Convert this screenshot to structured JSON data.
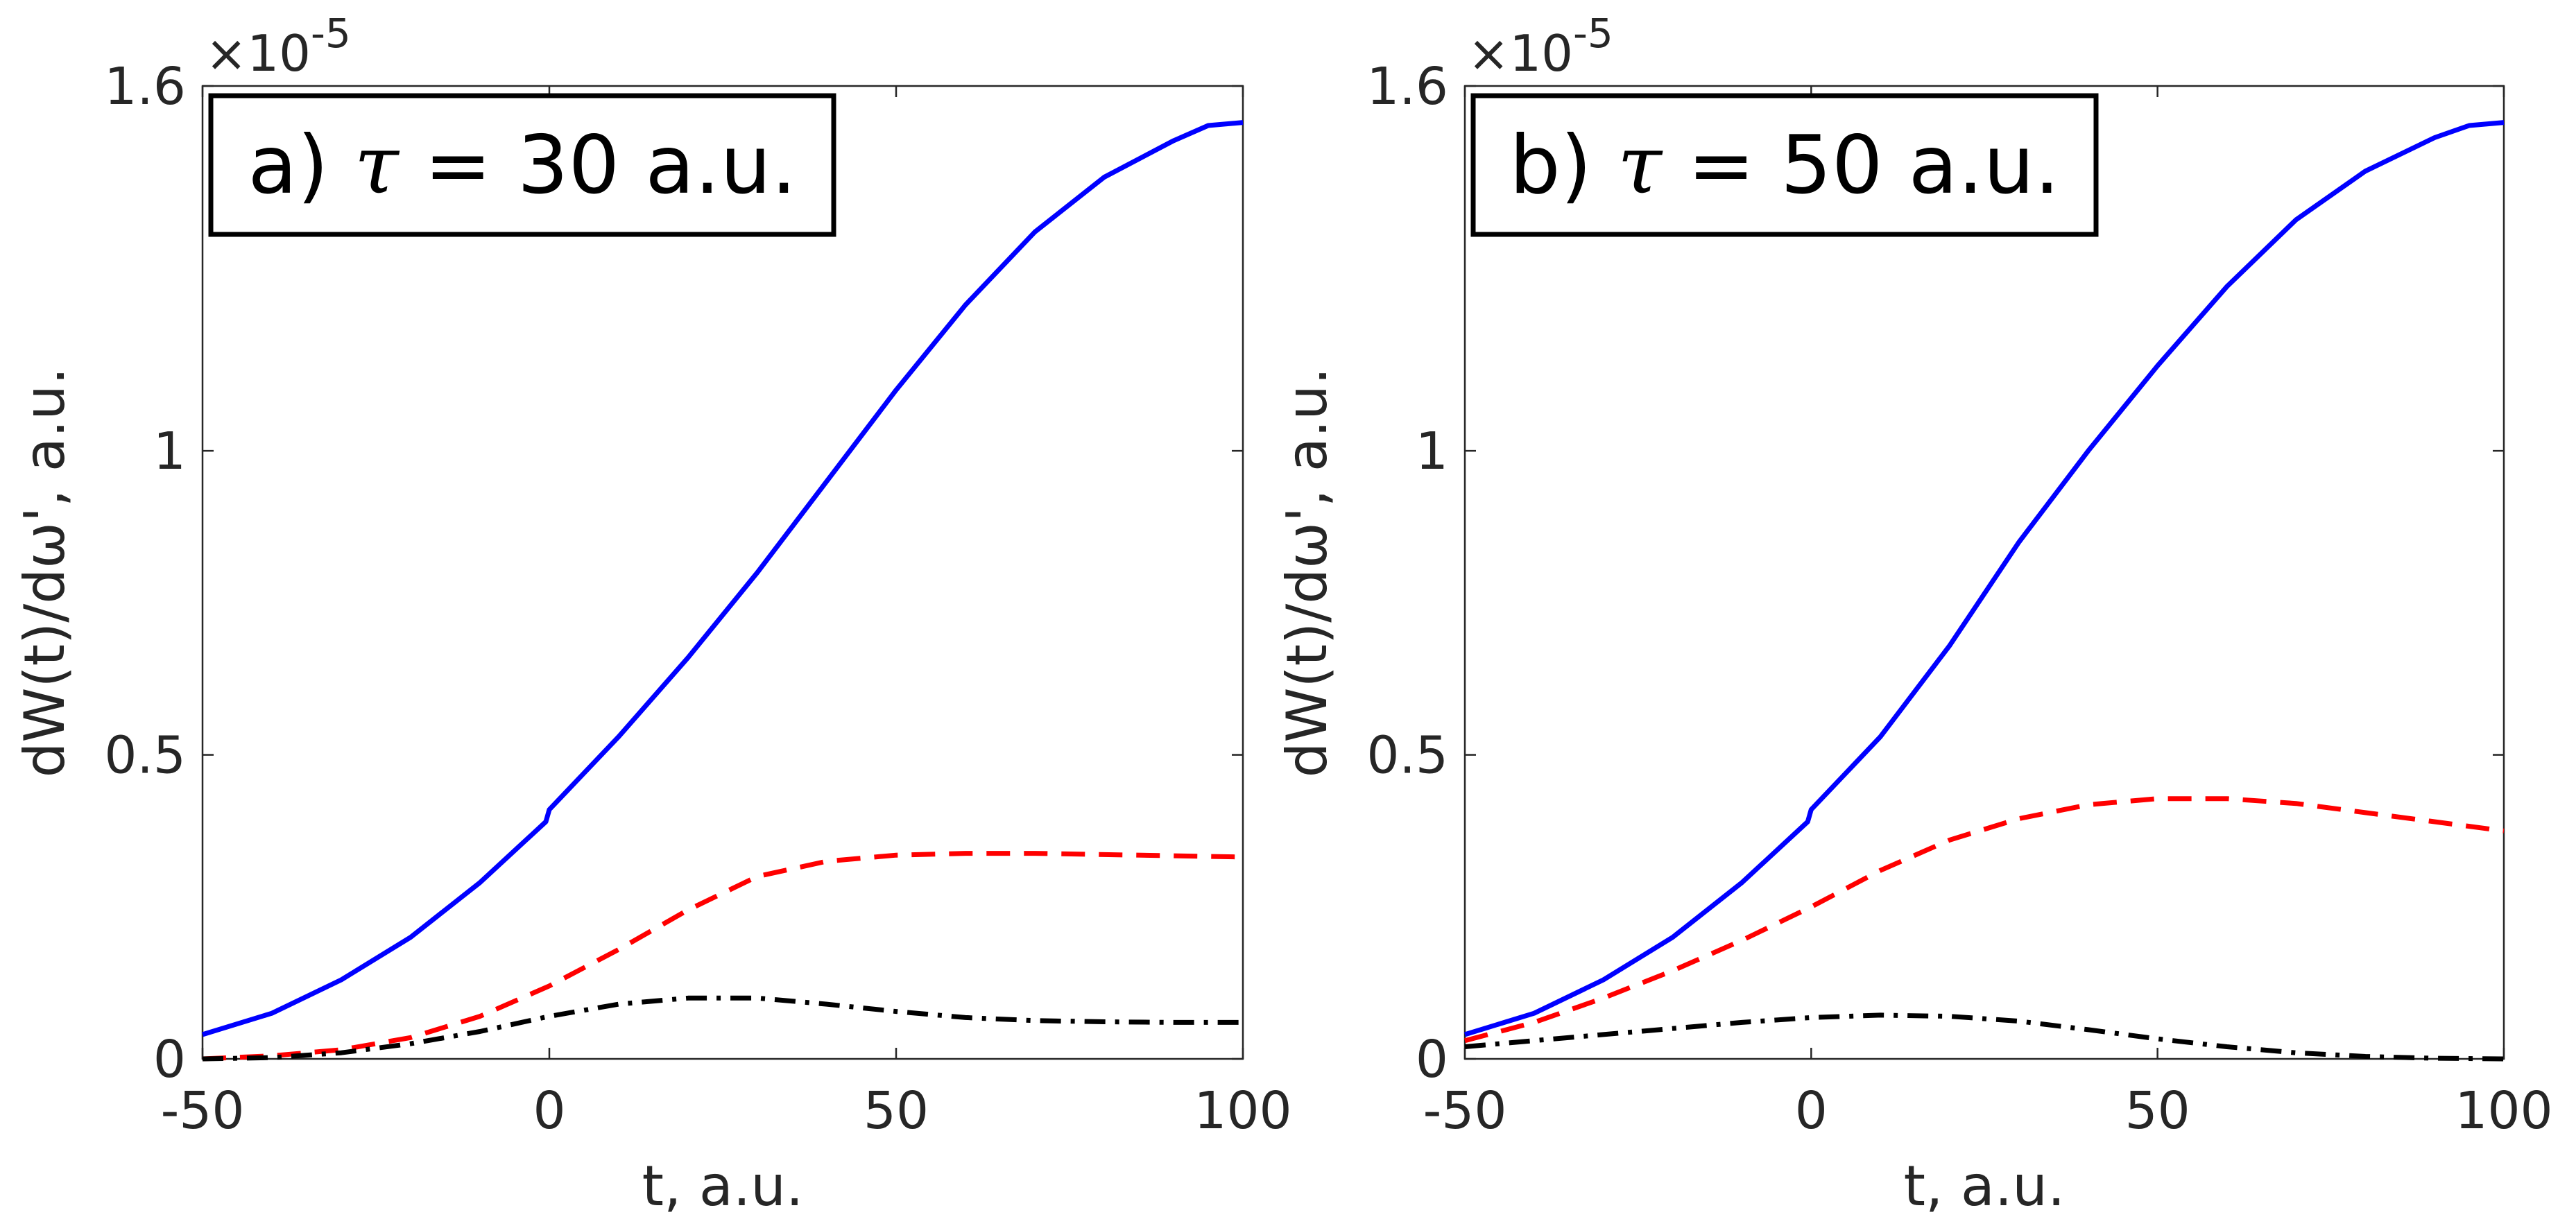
{
  "figure": {
    "common": {
      "xlabel": "t, a.u.",
      "ylabel": "dW(t)/dω', a.u.",
      "y_multiplier": "×10",
      "y_exponent": "-5",
      "xlim": [
        -50,
        100
      ],
      "ylim": [
        0,
        1.6
      ],
      "x_ticks": [
        -50,
        0,
        50,
        100
      ],
      "x_tick_labels": [
        "-50",
        "0",
        "50",
        "100"
      ],
      "y_ticks": [
        0,
        0.5,
        1,
        1.6
      ],
      "y_tick_labels": [
        "0",
        "0.5",
        "1",
        "1.6"
      ],
      "colors": {
        "blue": "#0000ff",
        "red": "#ff0000",
        "black": "#000000",
        "axis": "#262626"
      }
    }
  },
  "chart_data": [
    {
      "type": "line",
      "panel": "a",
      "title": "a) τ = 30 a.u.",
      "title_prefix": "a) ",
      "title_symbol": "τ",
      "title_suffix": " = 30 a.u.",
      "xlabel": "t, a.u.",
      "ylabel": "dW(t)/dω', a.u.",
      "xlim": [
        -50,
        100
      ],
      "ylim": [
        0,
        1.6
      ],
      "y_scale": "1e-5",
      "grid": false,
      "series": [
        {
          "name": "blue-solid",
          "color": "#0000ff",
          "style": "solid",
          "x": [
            -50,
            -40,
            -30,
            -20,
            -10,
            -0.5,
            0,
            5,
            10,
            20,
            30,
            40,
            50,
            60,
            70,
            80,
            90,
            95,
            100
          ],
          "y": [
            0.04,
            0.075,
            0.13,
            0.2,
            0.29,
            0.39,
            0.41,
            0.47,
            0.53,
            0.66,
            0.8,
            0.95,
            1.1,
            1.24,
            1.36,
            1.45,
            1.51,
            1.535,
            1.54
          ]
        },
        {
          "name": "red-dashed",
          "color": "#ff0000",
          "style": "dashed",
          "x": [
            -50,
            -40,
            -30,
            -20,
            -10,
            0,
            10,
            20,
            30,
            40,
            50,
            60,
            70,
            80,
            90,
            100
          ],
          "y": [
            0.0,
            0.005,
            0.015,
            0.035,
            0.07,
            0.12,
            0.18,
            0.245,
            0.3,
            0.325,
            0.335,
            0.338,
            0.338,
            0.336,
            0.334,
            0.332
          ]
        },
        {
          "name": "black-dash-dot",
          "color": "#000000",
          "style": "dashdot",
          "x": [
            -50,
            -40,
            -30,
            -20,
            -10,
            0,
            10,
            20,
            30,
            40,
            50,
            60,
            70,
            80,
            90,
            100
          ],
          "y": [
            0.0,
            0.002,
            0.01,
            0.025,
            0.045,
            0.07,
            0.09,
            0.1,
            0.1,
            0.09,
            0.078,
            0.068,
            0.063,
            0.061,
            0.06,
            0.06
          ]
        }
      ]
    },
    {
      "type": "line",
      "panel": "b",
      "title": "b) τ = 50 a.u.",
      "title_prefix": "b) ",
      "title_symbol": "τ",
      "title_suffix": " = 50 a.u.",
      "xlabel": "t, a.u.",
      "ylabel": "dW(t)/dω', a.u.",
      "xlim": [
        -50,
        100
      ],
      "ylim": [
        0,
        1.6
      ],
      "y_scale": "1e-5",
      "grid": false,
      "series": [
        {
          "name": "blue-solid",
          "color": "#0000ff",
          "style": "solid",
          "x": [
            -50,
            -40,
            -30,
            -20,
            -10,
            -0.5,
            0,
            5,
            10,
            20,
            30,
            40,
            50,
            60,
            70,
            80,
            90,
            95,
            100
          ],
          "y": [
            0.04,
            0.075,
            0.13,
            0.2,
            0.29,
            0.39,
            0.41,
            0.47,
            0.53,
            0.68,
            0.85,
            1.0,
            1.14,
            1.27,
            1.38,
            1.46,
            1.515,
            1.535,
            1.54
          ]
        },
        {
          "name": "red-dashed",
          "color": "#ff0000",
          "style": "dashed",
          "x": [
            -50,
            -40,
            -30,
            -20,
            -10,
            0,
            10,
            20,
            30,
            40,
            50,
            60,
            70,
            80,
            90,
            100
          ],
          "y": [
            0.03,
            0.06,
            0.1,
            0.145,
            0.195,
            0.25,
            0.31,
            0.36,
            0.395,
            0.418,
            0.428,
            0.428,
            0.42,
            0.405,
            0.39,
            0.375
          ]
        },
        {
          "name": "black-dash-dot",
          "color": "#000000",
          "style": "dashdot",
          "x": [
            -50,
            -40,
            -30,
            -20,
            -10,
            0,
            10,
            20,
            30,
            40,
            50,
            60,
            70,
            80,
            90,
            100
          ],
          "y": [
            0.02,
            0.03,
            0.04,
            0.05,
            0.06,
            0.068,
            0.072,
            0.07,
            0.062,
            0.048,
            0.033,
            0.02,
            0.01,
            0.004,
            0.001,
            0.0
          ]
        }
      ]
    }
  ]
}
